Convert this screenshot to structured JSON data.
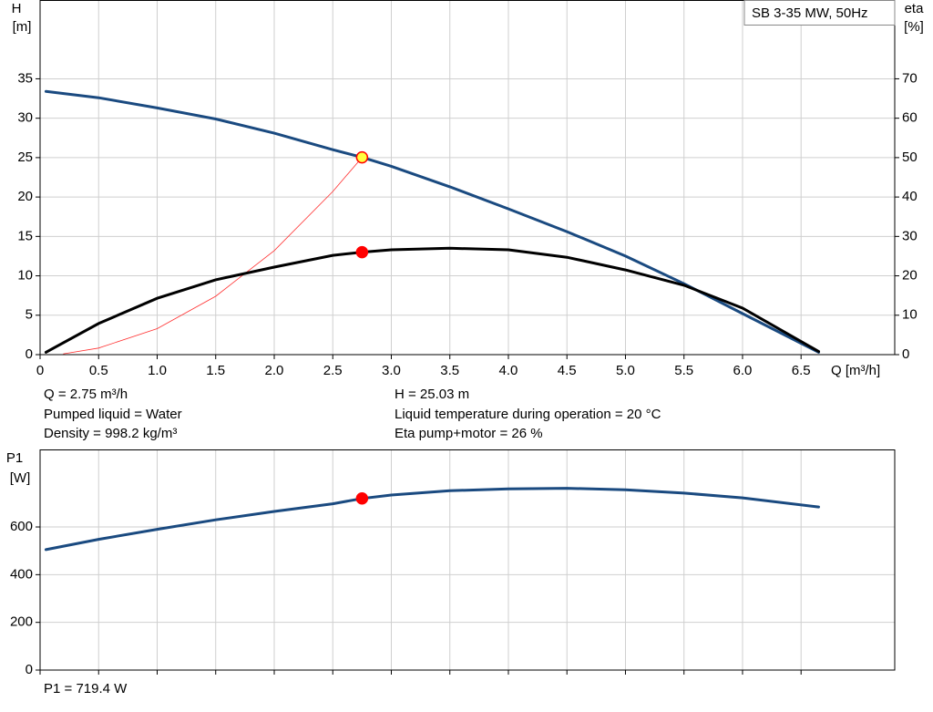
{
  "chart_data": [
    {
      "type": "line",
      "legend": "SB 3-35 MW, 50Hz",
      "y_label": "H",
      "y_unit": "[m]",
      "y2_label": "eta",
      "y2_unit": "[%]",
      "x_label": "Q [m³/h]",
      "xlim": [
        0,
        7.3
      ],
      "ylim": [
        0,
        45
      ],
      "y2lim": [
        0,
        90
      ],
      "xticks": [
        0,
        0.5,
        {
          "value": 1,
          "label": "1.0"
        },
        1.5,
        {
          "value": 2,
          "label": "2.0"
        },
        2.5,
        {
          "value": 3,
          "label": "3.0"
        },
        3.5,
        {
          "value": 4,
          "label": "4.0"
        },
        4.5,
        {
          "value": 5,
          "label": "5.0"
        },
        5.5,
        {
          "value": 6,
          "label": "6.0"
        },
        6.5
      ],
      "yticks": [
        0,
        5,
        10,
        15,
        20,
        25,
        30,
        35
      ],
      "y2ticks": [
        0,
        10,
        20,
        30,
        40,
        50,
        60,
        70
      ],
      "grid": true,
      "series": [
        {
          "color": "#1a4a80",
          "width": 3,
          "x": [
            0.05,
            0.5,
            1,
            1.5,
            2,
            2.5,
            2.75,
            3,
            3.5,
            4,
            4.5,
            5,
            5.5,
            6,
            6.65
          ],
          "values": [
            33.4,
            32.6,
            31.3,
            29.9,
            28.1,
            26.0,
            25.03,
            23.9,
            21.3,
            18.5,
            15.6,
            12.5,
            9.0,
            5.2,
            0.3
          ]
        },
        {
          "color": "#ff3030",
          "width": 0.8,
          "x": [
            0.2,
            0.5,
            1,
            1.5,
            2,
            2.5,
            2.75
          ],
          "values": [
            0.1,
            0.83,
            3.3,
            7.4,
            13.2,
            20.7,
            25.03
          ]
        },
        {
          "color": "#000000",
          "width": 3,
          "axis": "y2",
          "x": [
            0.05,
            0.5,
            1,
            1.5,
            2,
            2.5,
            2.75,
            3,
            3.5,
            4,
            4.5,
            5,
            5.5,
            6,
            6.65
          ],
          "values": [
            0.6,
            7.9,
            14.3,
            19,
            22.2,
            25.2,
            26,
            26.6,
            27,
            26.6,
            24.7,
            21.5,
            17.6,
            11.8,
            0.8
          ]
        }
      ],
      "duty_points": [
        {
          "x": 2.75,
          "y": 25.03,
          "color": "#ffff40"
        },
        {
          "x": 2.75,
          "y": 26,
          "axis": "y2",
          "color": "#ff0000"
        }
      ],
      "annotations": [
        "Q = 2.75 m³/h",
        "H = 25.03 m",
        "Pumped liquid = Water",
        "Liquid temperature during operation = 20 °C",
        "Density = 998.2 kg/m³",
        "Eta pump+motor = 26 %"
      ]
    },
    {
      "type": "line",
      "y_label": "P1",
      "y_unit": "[W]",
      "xlim": [
        0,
        7.3
      ],
      "ylim": [
        0,
        925
      ],
      "yticks": [
        0,
        200,
        400,
        600
      ],
      "grid": true,
      "series": [
        {
          "color": "#1a4a80",
          "width": 3,
          "x": [
            0.05,
            0.5,
            1,
            1.5,
            2,
            2.5,
            2.75,
            3,
            3.5,
            4,
            4.5,
            5,
            5.5,
            6,
            6.65
          ],
          "values": [
            505,
            548,
            590,
            630,
            665,
            697,
            719.4,
            734,
            752,
            760,
            762,
            756,
            742,
            722,
            684
          ]
        }
      ],
      "duty_points": [
        {
          "x": 2.75,
          "y": 719.4,
          "color": "#ff0000"
        }
      ],
      "annotations": [
        "P1 = 719.4 W"
      ]
    }
  ]
}
